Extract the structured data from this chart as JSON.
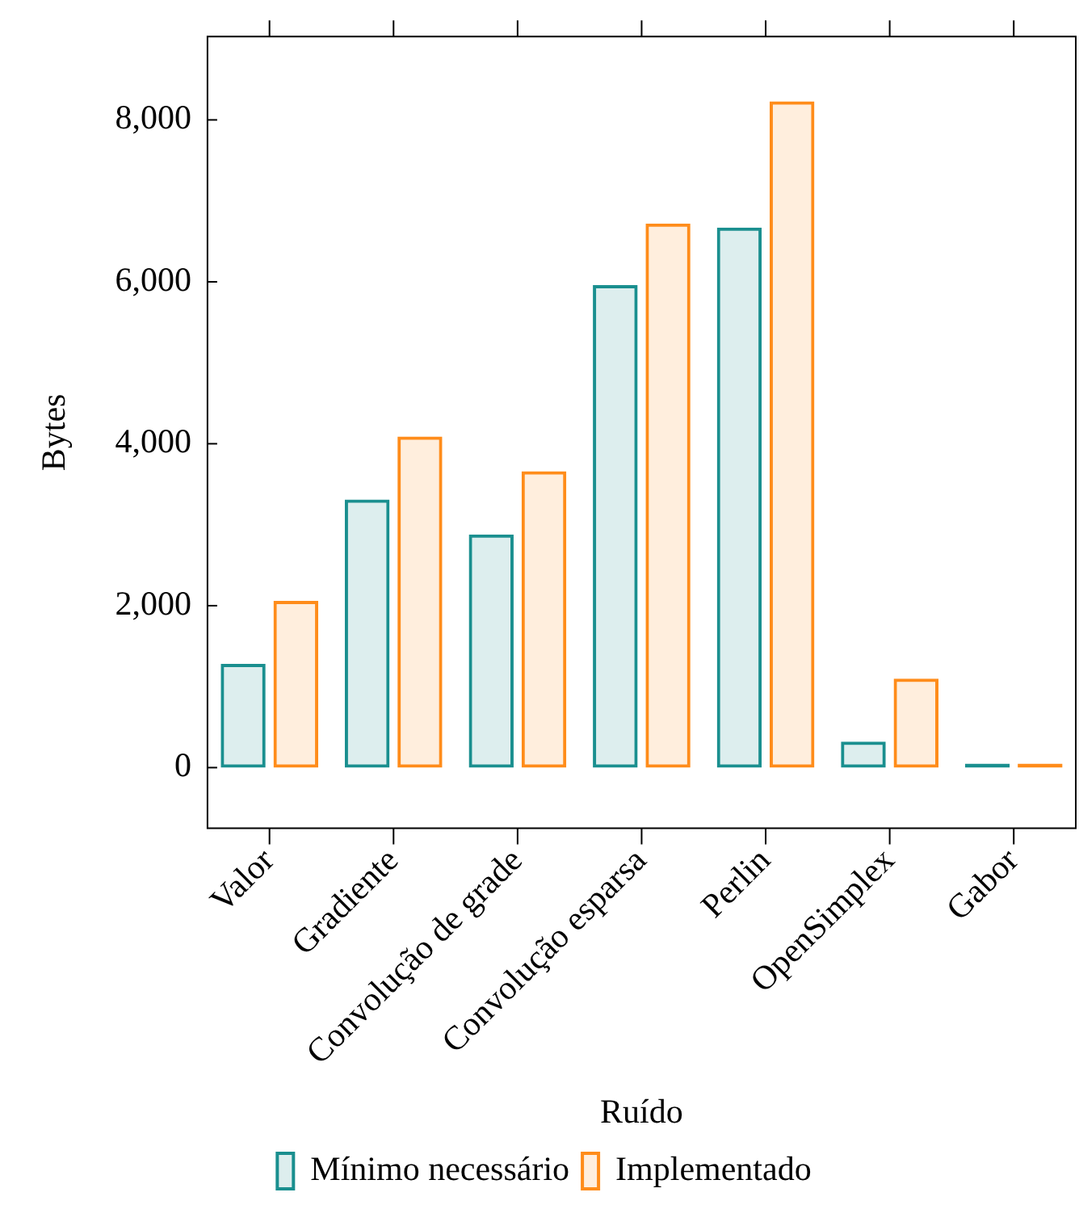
{
  "chart_data": {
    "type": "bar",
    "xlabel": "Ruído",
    "ylabel": "Bytes",
    "categories": [
      "Valor",
      "Gradiente",
      "Convolução de grade",
      "Convolução esparsa",
      "Perlin",
      "OpenSimplex",
      "Gabor"
    ],
    "series": [
      {
        "name": "Mínimo necessário",
        "color": "#1a8f8f",
        "values": [
          1280,
          3310,
          2880,
          5960,
          6670,
          320,
          50
        ]
      },
      {
        "name": "Implementado",
        "color": "#ff8c1a",
        "values": [
          2060,
          4090,
          3660,
          6720,
          8230,
          1100,
          50
        ]
      }
    ],
    "ylim": [
      -750,
      9030
    ],
    "yticks": [
      {
        "value": 0,
        "label": "0"
      },
      {
        "value": 2000,
        "label": "2,000"
      },
      {
        "value": 4000,
        "label": "4,000"
      },
      {
        "value": 6000,
        "label": "6,000"
      },
      {
        "value": 8000,
        "label": "8,000"
      }
    ],
    "grid": false,
    "legend": "bottom"
  }
}
